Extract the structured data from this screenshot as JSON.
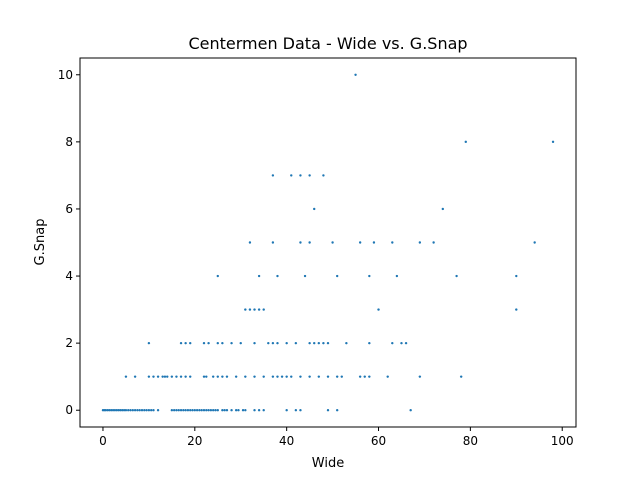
{
  "chart_data": {
    "type": "scatter",
    "title": "Centermen Data - Wide vs. G.Snap",
    "xlabel": "Wide",
    "ylabel": "G.Snap",
    "xlim": [
      -5,
      103
    ],
    "ylim": [
      -0.5,
      10.5
    ],
    "xticks": [
      "0",
      "20",
      "40",
      "60",
      "80",
      "100"
    ],
    "yticks": [
      "0",
      "2",
      "4",
      "6",
      "8",
      "10"
    ],
    "grid": false,
    "legend": "none",
    "marker_color": "#1f77b4",
    "series": [
      {
        "x": [
          0,
          0.3,
          0.6,
          1,
          1.4,
          1.8,
          2.2,
          2.6,
          3,
          3.4,
          3.8,
          4.2,
          4.6,
          5,
          5.5,
          6,
          6.5,
          7,
          7.5,
          8,
          8.5,
          9,
          9.5,
          10,
          10.5,
          11,
          12,
          15,
          15.5,
          16,
          16.5,
          17,
          17.5,
          18,
          18.5,
          19,
          19.5,
          20,
          20.5,
          21,
          21.5,
          22,
          22.5,
          23,
          23.5,
          24,
          24.5,
          25,
          26,
          26.5,
          27,
          28,
          29,
          29.5,
          30.5,
          31,
          33,
          34,
          35,
          40,
          42,
          43,
          49,
          51,
          67,
          5,
          7,
          10,
          11,
          12,
          13,
          13.5,
          14,
          15,
          16,
          17,
          18,
          19,
          22,
          22.5,
          24,
          25,
          26,
          27,
          29,
          31,
          33,
          35,
          37,
          38,
          39,
          40,
          41,
          43,
          45,
          47,
          49,
          51,
          52,
          56,
          57,
          58,
          62,
          69,
          78,
          10,
          17,
          18,
          19,
          22,
          23,
          25,
          26,
          28,
          30,
          33,
          36,
          37,
          38,
          40,
          42,
          45,
          46,
          47,
          48,
          49,
          53,
          58,
          63,
          65,
          66,
          31,
          32,
          33,
          34,
          35,
          25,
          34,
          38,
          44,
          51,
          58,
          64,
          77,
          90,
          32,
          37,
          43,
          45,
          50,
          56,
          59,
          63,
          69,
          72,
          94,
          46,
          74,
          37,
          41,
          43,
          45,
          48,
          79,
          98,
          55,
          60,
          90
        ],
        "y": [
          0,
          0,
          0,
          0,
          0,
          0,
          0,
          0,
          0,
          0,
          0,
          0,
          0,
          0,
          0,
          0,
          0,
          0,
          0,
          0,
          0,
          0,
          0,
          0,
          0,
          0,
          0,
          0,
          0,
          0,
          0,
          0,
          0,
          0,
          0,
          0,
          0,
          0,
          0,
          0,
          0,
          0,
          0,
          0,
          0,
          0,
          0,
          0,
          0,
          0,
          0,
          0,
          0,
          0,
          0,
          0,
          0,
          0,
          0,
          0,
          0,
          0,
          0,
          0,
          0,
          1,
          1,
          1,
          1,
          1,
          1,
          1,
          1,
          1,
          1,
          1,
          1,
          1,
          1,
          1,
          1,
          1,
          1,
          1,
          1,
          1,
          1,
          1,
          1,
          1,
          1,
          1,
          1,
          1,
          1,
          1,
          1,
          1,
          1,
          1,
          1,
          1,
          1,
          1,
          1,
          2,
          2,
          2,
          2,
          2,
          2,
          2,
          2,
          2,
          2,
          2,
          2,
          2,
          2,
          2,
          2,
          2,
          2,
          2,
          2,
          2,
          2,
          2,
          2,
          2,
          2,
          3,
          3,
          3,
          3,
          3,
          4,
          4,
          4,
          4,
          4,
          4,
          4,
          4,
          4,
          5,
          5,
          5,
          5,
          5,
          5,
          5,
          5,
          5,
          5,
          5,
          6,
          6,
          7,
          7,
          7,
          7,
          7,
          8,
          8,
          10,
          3,
          3
        ]
      }
    ]
  }
}
